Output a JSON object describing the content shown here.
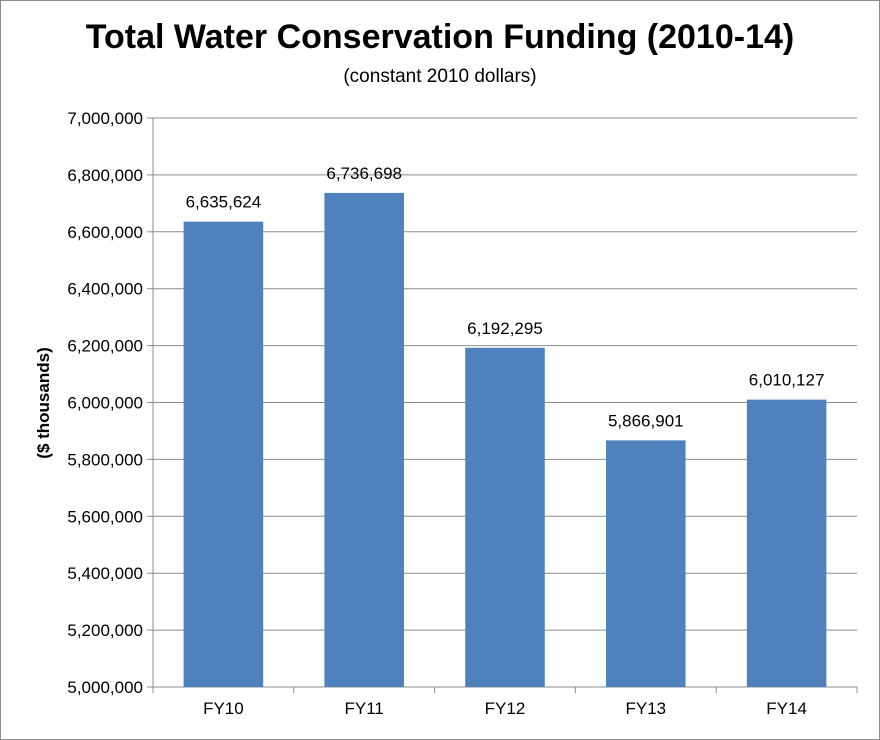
{
  "chart_data": {
    "type": "bar",
    "title": "Total Water Conservation Funding (2010-14)",
    "subtitle": "(constant 2010 dollars)",
    "xlabel": "",
    "ylabel": "($ thousands)",
    "categories": [
      "FY10",
      "FY11",
      "FY12",
      "FY13",
      "FY14"
    ],
    "values": [
      6635624,
      6736698,
      6192295,
      5866901,
      6010127
    ],
    "data_labels": [
      "6,635,624",
      "6,736,698",
      "6,192,295",
      "5,866,901",
      "6,010,127"
    ],
    "ylim": [
      5000000,
      7000000
    ],
    "yticks": [
      5000000,
      5200000,
      5400000,
      5600000,
      5800000,
      6000000,
      6200000,
      6400000,
      6600000,
      6800000,
      7000000
    ],
    "ytick_labels": [
      "5,000,000",
      "5,200,000",
      "5,400,000",
      "5,600,000",
      "5,800,000",
      "6,000,000",
      "6,200,000",
      "6,400,000",
      "6,600,000",
      "6,800,000",
      "7,000,000"
    ],
    "grid": true,
    "legend": "none",
    "bar_color": "#4f81bd",
    "grid_color": "#8c8c8c"
  }
}
